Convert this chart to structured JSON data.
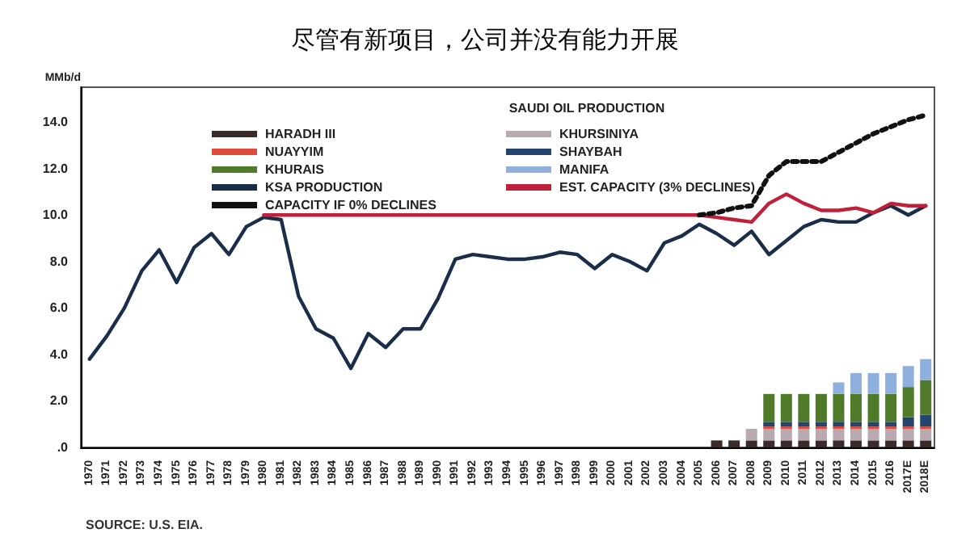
{
  "chart_data": {
    "type": "bar",
    "title": "尽管有新项目，公司并没有能力开展",
    "subtitle": "SAUDI OIL PRODUCTION",
    "ylabel": "MMb/d",
    "annotations": [
      "SOURCE: U.S. EIA."
    ],
    "categories": [
      "1970",
      "1971",
      "1972",
      "1973",
      "1974",
      "1975",
      "1976",
      "1977",
      "1978",
      "1979",
      "1980",
      "1981",
      "1982",
      "1983",
      "1984",
      "1985",
      "1986",
      "1987",
      "1988",
      "1989",
      "1990",
      "1991",
      "1992",
      "1993",
      "1994",
      "1995",
      "1996",
      "1997",
      "1998",
      "1999",
      "2000",
      "2001",
      "2002",
      "2003",
      "2004",
      "2005",
      "2006",
      "2007",
      "2008",
      "2009",
      "2010",
      "2011",
      "2012",
      "2013",
      "2014",
      "2015",
      "2016",
      "2017E",
      "2018E"
    ],
    "stacked": true,
    "ylim": [
      0,
      15.5
    ],
    "yticks": [
      {
        "value": 0,
        "label": ".0"
      },
      {
        "value": 2,
        "label": "2.0"
      },
      {
        "value": 4,
        "label": "4.0"
      },
      {
        "value": 6,
        "label": "6.0"
      },
      {
        "value": 8,
        "label": "8.0"
      },
      {
        "value": 10,
        "label": "10.0"
      },
      {
        "value": 12,
        "label": "12.0"
      },
      {
        "value": 14,
        "label": "14.0"
      }
    ],
    "grid": false,
    "legend": "top",
    "marker": "none",
    "series": [
      {
        "name": "HARADH III",
        "color": "#3b2a2a",
        "values": [
          null,
          null,
          null,
          null,
          null,
          null,
          null,
          null,
          null,
          null,
          null,
          null,
          null,
          null,
          null,
          null,
          null,
          null,
          null,
          null,
          null,
          null,
          null,
          null,
          null,
          null,
          null,
          null,
          null,
          null,
          null,
          null,
          null,
          null,
          null,
          null,
          0.3,
          0.3,
          0.3,
          0.3,
          0.3,
          0.3,
          0.3,
          0.3,
          0.3,
          0.3,
          0.3,
          0.3,
          0.3
        ]
      },
      {
        "name": "KHURSINIYA",
        "color": "#b9a9b0",
        "values": [
          null,
          null,
          null,
          null,
          null,
          null,
          null,
          null,
          null,
          null,
          null,
          null,
          null,
          null,
          null,
          null,
          null,
          null,
          null,
          null,
          null,
          null,
          null,
          null,
          null,
          null,
          null,
          null,
          null,
          null,
          null,
          null,
          null,
          null,
          null,
          null,
          null,
          null,
          0.5,
          0.5,
          0.5,
          0.5,
          0.5,
          0.5,
          0.5,
          0.5,
          0.5,
          0.5,
          0.5
        ]
      },
      {
        "name": "NUAYYIM",
        "color": "#e04a3a",
        "values": [
          null,
          null,
          null,
          null,
          null,
          null,
          null,
          null,
          null,
          null,
          null,
          null,
          null,
          null,
          null,
          null,
          null,
          null,
          null,
          null,
          null,
          null,
          null,
          null,
          null,
          null,
          null,
          null,
          null,
          null,
          null,
          null,
          null,
          null,
          null,
          null,
          null,
          null,
          null,
          0.1,
          0.1,
          0.1,
          0.1,
          0.1,
          0.1,
          0.1,
          0.1,
          0.1,
          0.1
        ]
      },
      {
        "name": "SHAYBAH",
        "color": "#24456e",
        "values": [
          null,
          null,
          null,
          null,
          null,
          null,
          null,
          null,
          null,
          null,
          null,
          null,
          null,
          null,
          null,
          null,
          null,
          null,
          null,
          null,
          null,
          null,
          null,
          null,
          null,
          null,
          null,
          null,
          null,
          null,
          null,
          null,
          null,
          null,
          null,
          null,
          null,
          null,
          null,
          0.2,
          0.2,
          0.2,
          0.2,
          0.2,
          0.2,
          0.2,
          0.2,
          0.4,
          0.5
        ]
      },
      {
        "name": "KHURAIS",
        "color": "#4f7a2a",
        "values": [
          null,
          null,
          null,
          null,
          null,
          null,
          null,
          null,
          null,
          null,
          null,
          null,
          null,
          null,
          null,
          null,
          null,
          null,
          null,
          null,
          null,
          null,
          null,
          null,
          null,
          null,
          null,
          null,
          null,
          null,
          null,
          null,
          null,
          null,
          null,
          null,
          null,
          null,
          null,
          1.2,
          1.2,
          1.2,
          1.2,
          1.2,
          1.2,
          1.2,
          1.2,
          1.3,
          1.5
        ]
      },
      {
        "name": "MANIFA",
        "color": "#8fb0dc",
        "values": [
          null,
          null,
          null,
          null,
          null,
          null,
          null,
          null,
          null,
          null,
          null,
          null,
          null,
          null,
          null,
          null,
          null,
          null,
          null,
          null,
          null,
          null,
          null,
          null,
          null,
          null,
          null,
          null,
          null,
          null,
          null,
          null,
          null,
          null,
          null,
          null,
          null,
          null,
          null,
          null,
          null,
          null,
          null,
          0.5,
          0.9,
          0.9,
          0.9,
          0.9,
          0.9
        ]
      },
      {
        "name": "KSA PRODUCTION",
        "type": "line",
        "color": "#1a2e4a",
        "line_style": "solid",
        "values": [
          3.8,
          4.8,
          6.0,
          7.6,
          8.5,
          7.1,
          8.6,
          9.2,
          8.3,
          9.5,
          9.9,
          9.8,
          6.5,
          5.1,
          4.7,
          3.4,
          4.9,
          4.3,
          5.1,
          5.1,
          6.4,
          8.1,
          8.3,
          8.2,
          8.1,
          8.1,
          8.2,
          8.4,
          8.3,
          7.7,
          8.3,
          8.0,
          7.6,
          8.8,
          9.1,
          9.6,
          9.2,
          8.7,
          9.3,
          8.3,
          8.9,
          9.5,
          9.8,
          9.7,
          9.7,
          10.1,
          10.4,
          10.0,
          10.4
        ]
      },
      {
        "name": "EST. CAPACITY (3% DECLINES)",
        "type": "line",
        "color": "#c0203a",
        "line_style": "solid",
        "values": [
          null,
          null,
          null,
          null,
          null,
          null,
          null,
          null,
          null,
          null,
          10.0,
          10.0,
          10.0,
          10.0,
          10.0,
          10.0,
          10.0,
          10.0,
          10.0,
          10.0,
          10.0,
          10.0,
          10.0,
          10.0,
          10.0,
          10.0,
          10.0,
          10.0,
          10.0,
          10.0,
          10.0,
          10.0,
          10.0,
          10.0,
          10.0,
          10.0,
          9.9,
          9.8,
          9.7,
          10.5,
          10.9,
          10.5,
          10.2,
          10.2,
          10.3,
          10.1,
          10.5,
          10.4,
          10.4
        ]
      },
      {
        "name": "CAPACITY IF 0% DECLINES",
        "type": "line",
        "color": "#111111",
        "line_style": "dotted",
        "values": [
          null,
          null,
          null,
          null,
          null,
          null,
          null,
          null,
          null,
          null,
          null,
          null,
          null,
          null,
          null,
          null,
          null,
          null,
          null,
          null,
          null,
          null,
          null,
          null,
          null,
          null,
          null,
          null,
          null,
          null,
          null,
          null,
          null,
          null,
          null,
          10.0,
          10.1,
          10.3,
          10.4,
          11.7,
          12.3,
          12.3,
          12.3,
          12.7,
          13.1,
          13.5,
          13.8,
          14.1,
          14.3
        ]
      }
    ]
  }
}
